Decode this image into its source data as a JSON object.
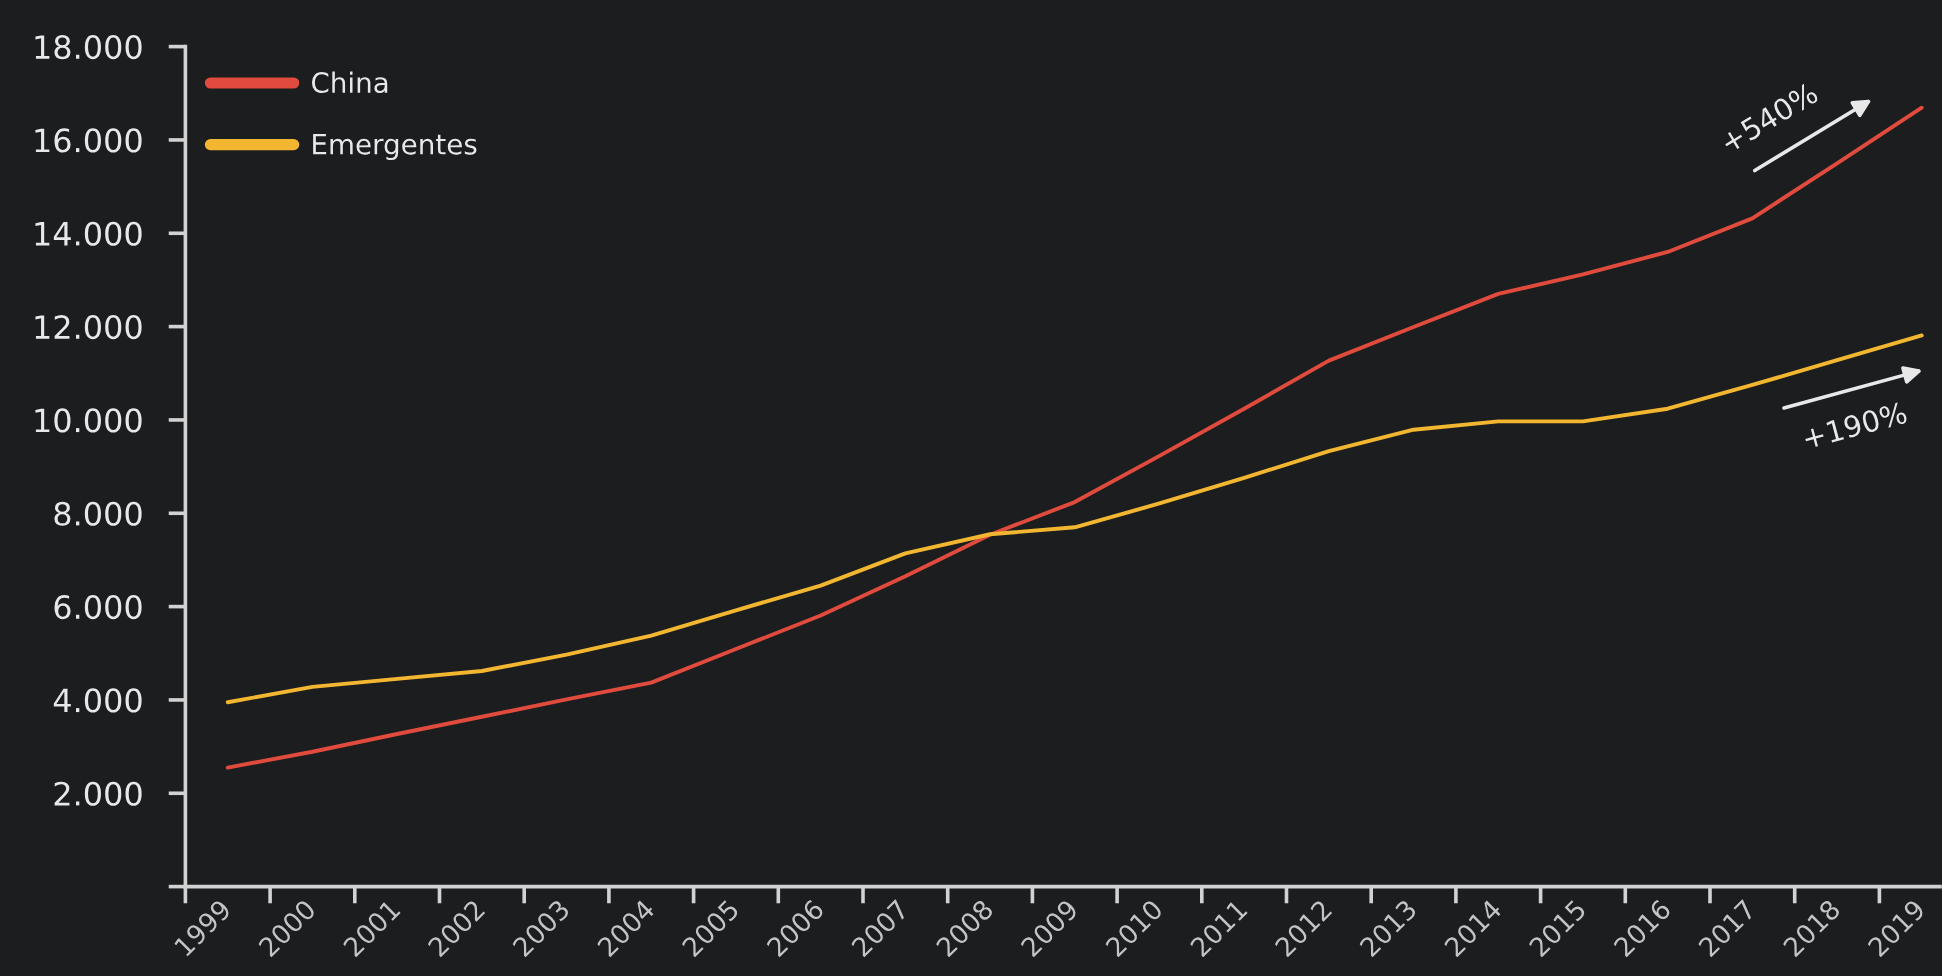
{
  "chart_data": {
    "type": "line",
    "categories": [
      "1999",
      "2000",
      "2001",
      "2002",
      "2003",
      "2004",
      "2005",
      "2006",
      "2007",
      "2008",
      "2009",
      "2010",
      "2011",
      "2012",
      "2013",
      "2014",
      "2015",
      "2016",
      "2017",
      "2018",
      "2019"
    ],
    "series": [
      {
        "name": "China",
        "color": "#e04b3d",
        "values": [
          2550,
          2890,
          3270,
          3640,
          4010,
          4370,
          5090,
          5810,
          6650,
          7540,
          8240,
          9230,
          10240,
          11270,
          11990,
          12700,
          13120,
          13600,
          14320,
          15500,
          16690
        ]
      },
      {
        "name": "Emergentes",
        "color": "#f2b630",
        "values": [
          3950,
          4280,
          4450,
          4620,
          4970,
          5380,
          5920,
          6450,
          7140,
          7550,
          7700,
          8210,
          8760,
          9330,
          9790,
          9970,
          9970,
          10240,
          10750,
          11280,
          11810
        ]
      }
    ],
    "ylim": [
      0,
      18000
    ],
    "yticks": [
      {
        "value": 0,
        "label": null
      },
      {
        "value": 2000,
        "label": "2.000"
      },
      {
        "value": 4000,
        "label": "4.000"
      },
      {
        "value": 6000,
        "label": "6.000"
      },
      {
        "value": 8000,
        "label": "8.000"
      },
      {
        "value": 10000,
        "label": "10.000"
      },
      {
        "value": 12000,
        "label": "12.000"
      },
      {
        "value": 14000,
        "label": "14.000"
      },
      {
        "value": 16000,
        "label": "16.000"
      },
      {
        "value": 18000,
        "label": "18.000"
      }
    ],
    "legend": "top left",
    "line_style": "solid",
    "annotations": [
      "+540%",
      "+190%"
    ]
  }
}
